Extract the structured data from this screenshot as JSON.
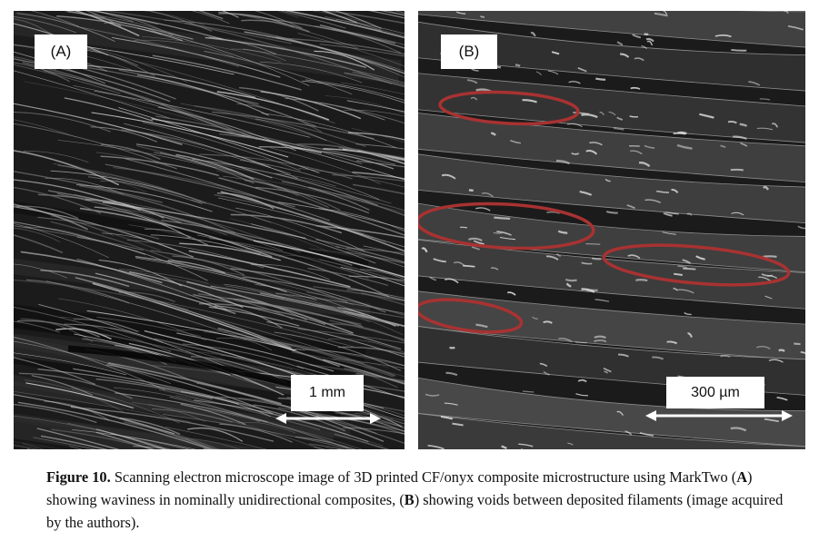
{
  "figure": {
    "panel_a": {
      "label": "(A)",
      "scale_bar": "1 mm"
    },
    "panel_b": {
      "label": "(B)",
      "scale_bar": "300 µm",
      "void_markers": 4
    },
    "caption": {
      "heading": "Figure 10.",
      "part1": " Scanning electron microscope image of 3D printed CF/onyx composite microstructure using MarkTwo (",
      "ref_a": "A",
      "part2": ") showing waviness in nominally unidirectional composites, (",
      "ref_b": "B",
      "part3": ") showing voids between deposited filaments (image acquired by the authors)."
    },
    "colors": {
      "marker": "#a83232",
      "background": "#1b1b1b"
    }
  }
}
